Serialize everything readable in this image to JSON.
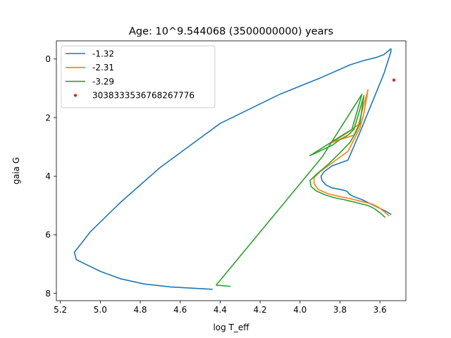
{
  "chart_data": {
    "type": "line",
    "title": "Age: 10^9.544068 (3500000000) years",
    "xlabel": "log T_eff",
    "ylabel": "gaia G",
    "xlim": [
      5.22,
      3.47
    ],
    "ylim": [
      8.25,
      -0.62
    ],
    "x_inverted": true,
    "y_inverted": true,
    "xticks": [
      5.2,
      5.0,
      4.8,
      4.6,
      4.4,
      4.2,
      4.0,
      3.8,
      3.6
    ],
    "xtick_labels": [
      "5.2",
      "5.0",
      "4.8",
      "4.6",
      "4.4",
      "4.2",
      "4.0",
      "3.8",
      "3.6"
    ],
    "yticks": [
      0,
      2,
      4,
      6,
      8
    ],
    "ytick_labels": [
      "0",
      "2",
      "4",
      "6",
      "8"
    ],
    "grid": false,
    "legend_position": "top-left",
    "series": [
      {
        "name": "-1.32",
        "color": "#1f77b4",
        "kind": "line",
        "x": [
          3.545,
          3.57,
          3.6,
          3.63,
          3.66,
          3.69,
          3.71,
          3.73,
          3.745,
          3.755,
          3.76,
          3.77,
          3.8,
          3.84,
          3.87,
          3.89,
          3.895,
          3.88,
          3.84,
          3.76,
          3.7,
          3.64,
          3.58,
          3.545,
          3.545,
          3.58,
          3.62,
          3.68,
          3.75,
          3.8,
          3.9,
          4.1,
          4.4,
          4.7,
          4.9,
          5.05,
          5.13,
          5.12,
          5.06,
          5.0,
          4.9,
          4.78,
          4.65,
          4.52,
          4.44
        ],
        "y": [
          5.3,
          5.2,
          5.1,
          5.0,
          4.9,
          4.8,
          4.75,
          4.7,
          4.65,
          4.6,
          4.55,
          4.5,
          4.45,
          4.4,
          4.3,
          4.15,
          4.0,
          3.85,
          3.65,
          3.45,
          2.5,
          1.5,
          0.5,
          -0.25,
          -0.35,
          -0.15,
          -0.05,
          0.05,
          0.2,
          0.35,
          0.65,
          1.2,
          2.2,
          3.7,
          4.9,
          5.9,
          6.6,
          6.85,
          7.05,
          7.25,
          7.5,
          7.68,
          7.78,
          7.83,
          7.86
        ]
      },
      {
        "name": "-2.31",
        "color": "#ff7f0e",
        "kind": "line",
        "x": [
          3.555,
          3.58,
          3.61,
          3.64,
          3.67,
          3.7,
          3.73,
          3.76,
          3.8,
          3.86,
          3.91,
          3.93,
          3.93,
          3.9,
          3.84,
          3.76,
          3.73,
          3.7,
          3.68,
          3.66,
          3.71,
          3.73,
          3.8,
          3.84,
          3.77,
          3.73,
          3.71,
          3.7
        ],
        "y": [
          5.35,
          5.2,
          5.05,
          4.95,
          4.9,
          4.85,
          4.8,
          4.75,
          4.7,
          4.6,
          4.45,
          4.25,
          4.05,
          3.85,
          3.55,
          3.15,
          2.75,
          2.35,
          1.85,
          1.05,
          2.3,
          2.6,
          2.75,
          2.85,
          2.55,
          2.35,
          2.25,
          2.2
        ]
      },
      {
        "name": "-3.29",
        "color": "#2ca02c",
        "kind": "line",
        "x": [
          3.575,
          3.6,
          3.63,
          3.66,
          3.69,
          3.72,
          3.75,
          3.78,
          3.82,
          3.87,
          3.92,
          3.945,
          3.95,
          3.92,
          3.86,
          3.8,
          3.75,
          3.72,
          3.7,
          3.69,
          3.68,
          3.73,
          3.76,
          3.8,
          3.84,
          3.95,
          3.8,
          3.74,
          3.69,
          3.89,
          4.42,
          4.35
        ],
        "y": [
          5.4,
          5.25,
          5.1,
          5.0,
          4.95,
          4.9,
          4.85,
          4.8,
          4.75,
          4.65,
          4.5,
          4.35,
          4.15,
          3.95,
          3.6,
          3.2,
          2.85,
          2.5,
          2.2,
          1.7,
          1.25,
          2.4,
          2.6,
          2.75,
          2.95,
          3.3,
          2.65,
          2.4,
          1.2,
          3.35,
          7.72,
          7.76
        ]
      },
      {
        "name": "303833353676826777­6",
        "color": "#d62728",
        "kind": "point",
        "x": [
          3.53
        ],
        "y": [
          0.72
        ]
      }
    ]
  }
}
